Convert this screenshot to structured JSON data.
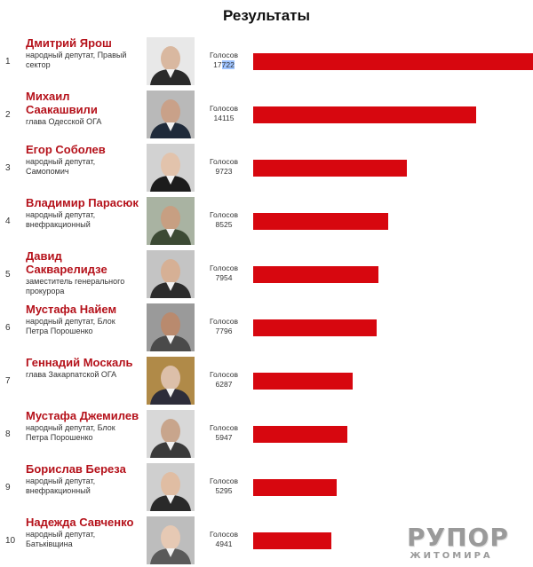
{
  "title": "Результаты",
  "votes_label": "Голосов",
  "colors": {
    "bar": "#d7070f",
    "name": "#b5121b"
  },
  "max_votes": 17722,
  "candidates": [
    {
      "rank": "1",
      "name": "Дмитрий Ярош",
      "desc": "народный депутат, Правый сектор",
      "votes": "17722",
      "value": 17722
    },
    {
      "rank": "2",
      "name": "Михаил Саакашвили",
      "desc": "глава Одесской ОГА",
      "votes": "14115",
      "value": 14115
    },
    {
      "rank": "3",
      "name": "Егор Соболев",
      "desc": "народный депутат, Самопомич",
      "votes": "9723",
      "value": 9723
    },
    {
      "rank": "4",
      "name": "Владимир Парасюк",
      "desc": "народный депутат, внефракционный",
      "votes": "8525",
      "value": 8525
    },
    {
      "rank": "5",
      "name": "Давид Сакварелидзе",
      "desc": "заместитель генерального прокурора",
      "votes": "7954",
      "value": 7954
    },
    {
      "rank": "6",
      "name": "Мустафа Найем",
      "desc": "народный депутат, Блок Петра Порошенко",
      "votes": "7796",
      "value": 7796
    },
    {
      "rank": "7",
      "name": "Геннадий Москаль",
      "desc": "глава Закарпатской ОГА",
      "votes": "6287",
      "value": 6287
    },
    {
      "rank": "8",
      "name": "Мустафа Джемилев",
      "desc": "народный депутат, Блок Петра Порошенко",
      "votes": "5947",
      "value": 5947
    },
    {
      "rank": "9",
      "name": "Борислав Береза",
      "desc": "народный депутат, внефракционный",
      "votes": "5295",
      "value": 5295
    },
    {
      "rank": "10",
      "name": "Надежда Савченко",
      "desc": "народный депутат, Батьківщина",
      "votes": "4941",
      "value": 4941
    }
  ],
  "logo": {
    "main": "РУПОР",
    "sub": "ЖИТОМИРА"
  }
}
